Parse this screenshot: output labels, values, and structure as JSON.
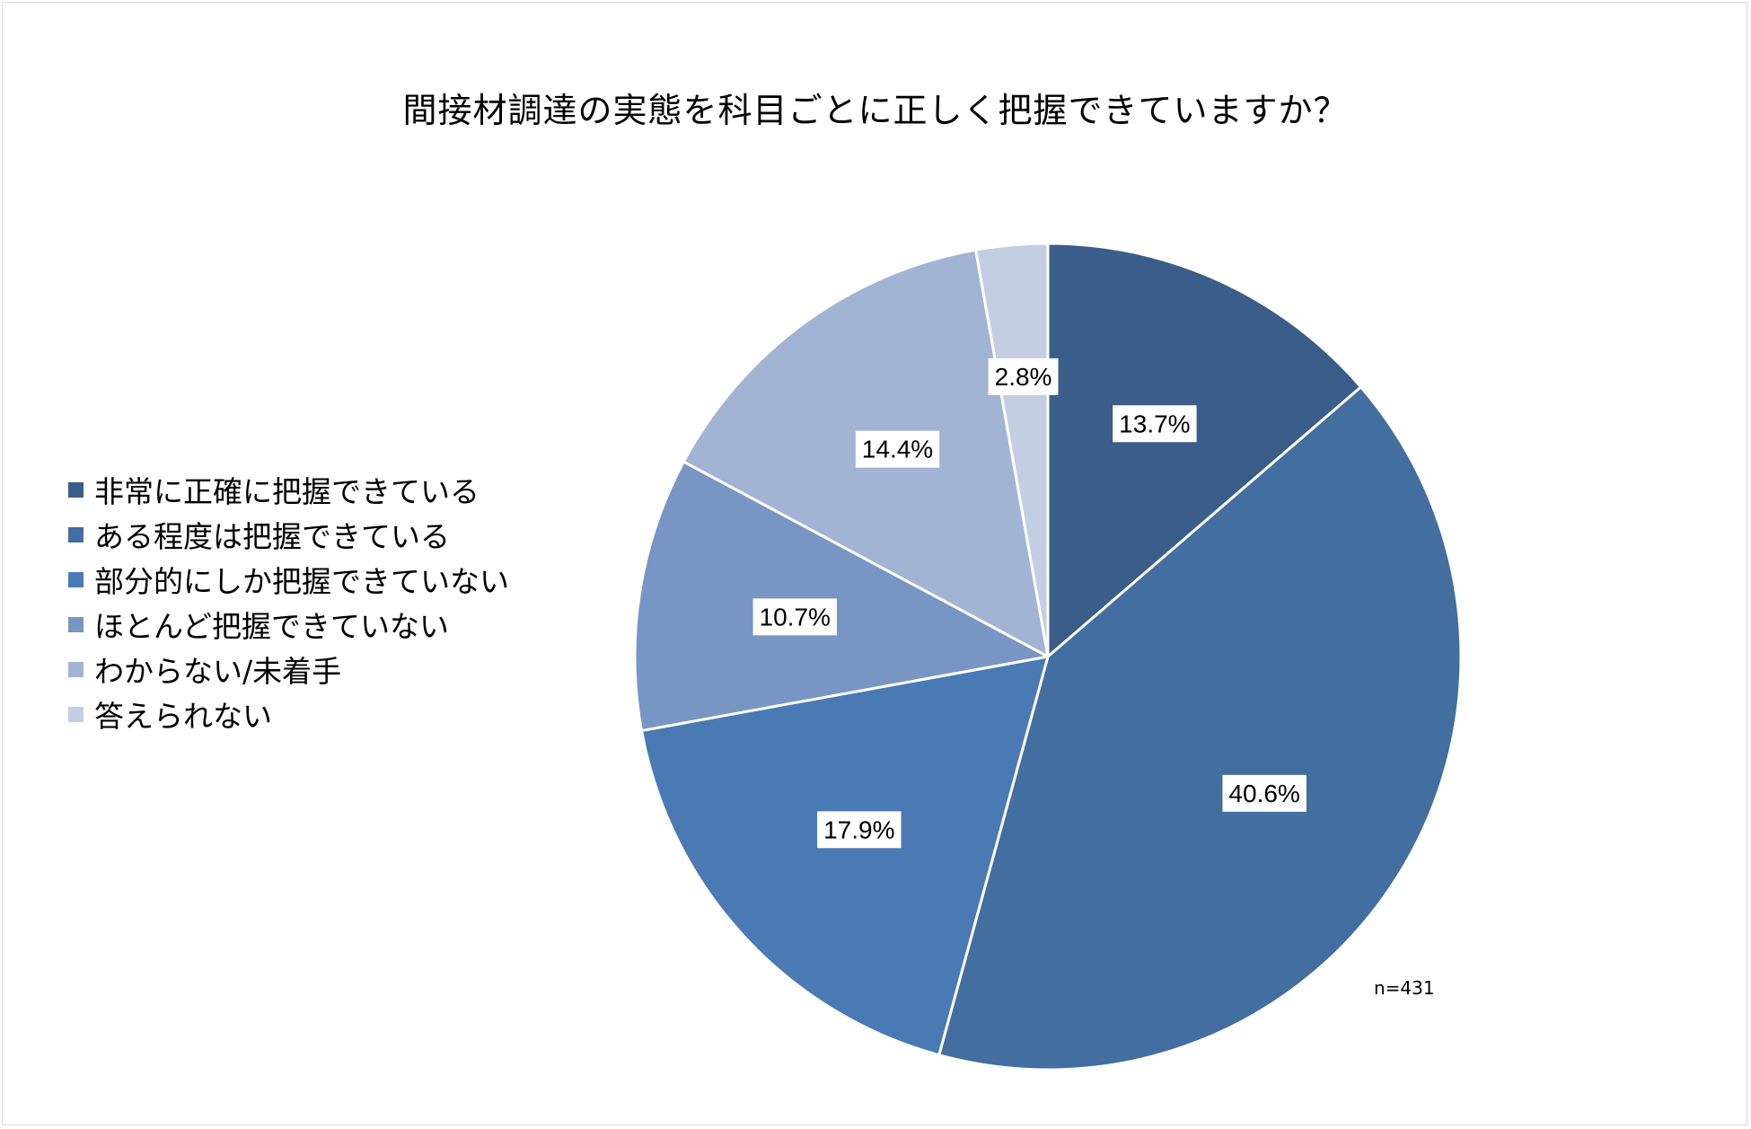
{
  "chart_data": {
    "type": "pie",
    "title": "間接材調達の実態を科目ごとに正しく把握できていますか？",
    "note": "n=431",
    "legend_position": "left",
    "slices": [
      {
        "label": "非常に正確に把握できている",
        "value": 13.7,
        "display": "13.7%",
        "color": "#3a5d8a"
      },
      {
        "label": "ある程度は把握できている",
        "value": 40.6,
        "display": "40.6%",
        "color": "#436ea0"
      },
      {
        "label": "部分的にしか把握できていない",
        "value": 17.9,
        "display": "17.9%",
        "color": "#4a7ab4"
      },
      {
        "label": "ほとんど把握できていない",
        "value": 10.7,
        "display": "10.7%",
        "color": "#7895c4"
      },
      {
        "label": "わからない/未着手",
        "value": 14.4,
        "display": "14.4%",
        "color": "#a2b4d4"
      },
      {
        "label": "答えられない",
        "value": 2.8,
        "display": "2.8%",
        "color": "#c3cee3"
      }
    ]
  }
}
